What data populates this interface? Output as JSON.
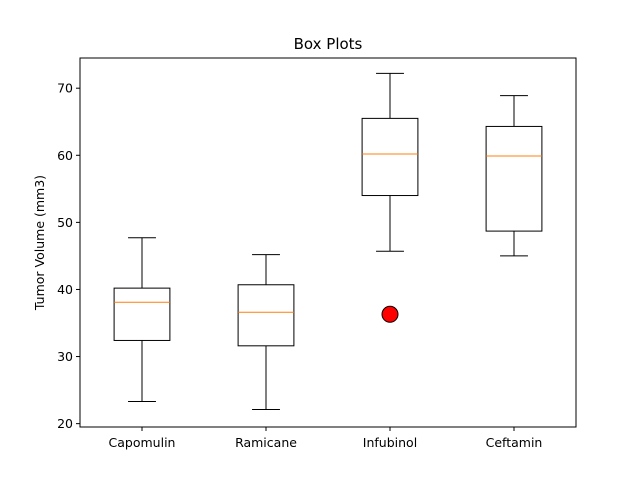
{
  "chart_data": {
    "type": "box",
    "title": "Box Plots",
    "xlabel": "",
    "ylabel": "Tumor Volume (mm3)",
    "ylim": [
      19.5,
      74.5
    ],
    "yticks": [
      20,
      30,
      40,
      50,
      60,
      70
    ],
    "categories": [
      "Capomulin",
      "Ramicane",
      "Infubinol",
      "Ceftamin"
    ],
    "series": [
      {
        "whisker_low": 23.3,
        "q1": 32.4,
        "median": 38.1,
        "q3": 40.2,
        "whisker_high": 47.7,
        "outliers": []
      },
      {
        "whisker_low": 22.1,
        "q1": 31.6,
        "median": 36.6,
        "q3": 40.7,
        "whisker_high": 45.2,
        "outliers": []
      },
      {
        "whisker_low": 45.7,
        "q1": 54.0,
        "median": 60.2,
        "q3": 65.5,
        "whisker_high": 72.2,
        "outliers": [
          36.3
        ]
      },
      {
        "whisker_low": 45.0,
        "q1": 48.7,
        "median": 59.9,
        "q3": 64.3,
        "whisker_high": 68.9,
        "outliers": []
      }
    ],
    "colors": {
      "box": "#000000",
      "median": "#ff7f0e",
      "outlier_fill": "#ff0000",
      "outlier_edge": "#000000"
    }
  }
}
